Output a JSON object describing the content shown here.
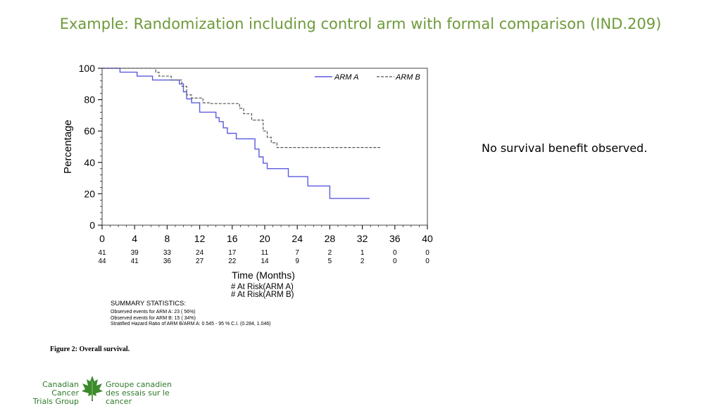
{
  "slide": {
    "title": "Example: Randomization including control arm with formal comparison (IND.209)",
    "note": "No survival benefit observed."
  },
  "chart_data": {
    "type": "line",
    "ylabel": "Percentage",
    "xlabel": "Time (Months)",
    "xlim": [
      0,
      40
    ],
    "ylim": [
      0,
      100
    ],
    "xticks": [
      0,
      4,
      8,
      12,
      16,
      20,
      24,
      28,
      32,
      36,
      40
    ],
    "yticks": [
      0,
      20,
      40,
      60,
      80,
      100
    ],
    "legend_position": "top-right",
    "series": [
      {
        "name": "ARM A",
        "color": "#5b5be0",
        "style": "solid",
        "x": [
          0,
          2.2,
          2.2,
          4.3,
          4.3,
          6.2,
          6.2,
          9.5,
          9.5,
          10.0,
          10.0,
          10.4,
          10.4,
          11.0,
          11.0,
          12.0,
          12.0,
          14.0,
          14.0,
          14.4,
          14.4,
          14.9,
          14.9,
          15.4,
          15.4,
          16.5,
          16.5,
          18.8,
          18.8,
          19.3,
          19.3,
          19.8,
          19.8,
          20.3,
          20.3,
          22.9,
          22.9,
          25.3,
          25.3,
          28.0,
          28.0,
          32.9
        ],
        "y": [
          100,
          100,
          97.5,
          97.5,
          95,
          95,
          92.5,
          92.5,
          90,
          90,
          85,
          85,
          80.5,
          80.5,
          78,
          78,
          72,
          72,
          68.5,
          68.5,
          66,
          66,
          62,
          62,
          58.5,
          58.5,
          55,
          55,
          48.5,
          48.5,
          43.5,
          43.5,
          39.5,
          39.5,
          36,
          36,
          31,
          31,
          25,
          25,
          17,
          17
        ]
      },
      {
        "name": "ARM B",
        "color": "#555555",
        "style": "dashed",
        "x": [
          0,
          6.6,
          6.6,
          7.0,
          7.0,
          8.5,
          8.5,
          9.8,
          9.8,
          10.4,
          10.4,
          11.0,
          11.0,
          12.4,
          12.4,
          13.2,
          13.2,
          16.9,
          16.9,
          17.4,
          17.4,
          18.4,
          18.4,
          19.8,
          19.8,
          20.3,
          20.3,
          20.8,
          20.8,
          21.5,
          21.5,
          34.2
        ],
        "y": [
          100,
          100,
          97.5,
          97.5,
          95,
          95,
          92.5,
          92.5,
          88.5,
          88.5,
          83,
          83,
          81,
          81,
          78,
          78,
          77.5,
          77.5,
          74.5,
          74.5,
          71,
          71,
          67,
          67,
          60,
          60,
          56,
          56,
          52.5,
          52.5,
          49.5,
          49.5
        ]
      }
    ],
    "at_risk": {
      "arm_a": [
        "41",
        "39",
        "33",
        "24",
        "17",
        "11",
        "7",
        "2",
        "1",
        "0",
        "0"
      ],
      "arm_b": [
        "44",
        "41",
        "36",
        "27",
        "22",
        "14",
        "9",
        "5",
        "2",
        "0",
        "0"
      ],
      "label_a": "# At Risk(ARM A)",
      "label_b": "# At Risk(ARM B)"
    }
  },
  "summary": {
    "header": "SUMMARY STATISTICS:",
    "lines": [
      "Observed events for ARM A:  23 ( 56%)",
      "Observed events for ARM B:  15 ( 34%)",
      "Stratified Hazard Ratio of ARM B/ARM A:  0.545 - 95 % C.I.   (0.284, 1.046)"
    ]
  },
  "caption": "Figure 2: Overall survival.",
  "logo": {
    "en_line1": "Canadian Cancer",
    "en_line2": "Trials Group",
    "fr_line1": "Groupe canadien",
    "fr_line2": "des essais sur le cancer",
    "color": "#2f7a2a"
  }
}
